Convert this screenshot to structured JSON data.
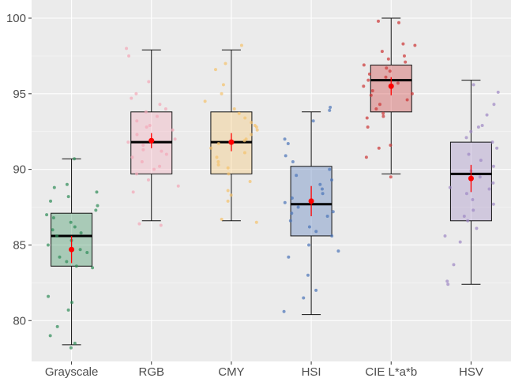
{
  "chart_data": {
    "type": "boxplot",
    "title": "",
    "xlabel": "",
    "ylabel": "",
    "ylim": [
      77.3,
      101.2
    ],
    "yticks": [
      80,
      85,
      90,
      95,
      100
    ],
    "grid": true,
    "categories": [
      "Grayscale",
      "RGB",
      "CMY",
      "HSI",
      "CIE L*a*b",
      "HSV"
    ],
    "boxes": [
      {
        "name": "Grayscale",
        "color": "#2e8b57",
        "whisker_low": 78.4,
        "q1": 83.6,
        "median": 85.6,
        "q3": 87.1,
        "whisker_high": 90.7,
        "mean": 84.7,
        "mean_err": 0.9,
        "points": [
          78.2,
          78.5,
          79.0,
          79.6,
          80.7,
          81.2,
          81.6,
          83.5,
          83.6,
          83.9,
          84.2,
          84.5,
          84.7,
          85.0,
          85.3,
          85.6,
          85.8,
          86.0,
          86.2,
          86.5,
          86.8,
          87.0,
          87.3,
          87.6,
          87.9,
          88.2,
          88.5,
          88.8,
          89.0,
          90.7
        ]
      },
      {
        "name": "RGB",
        "color": "#f4a6b6",
        "whisker_low": 86.6,
        "q1": 89.7,
        "median": 91.8,
        "q3": 93.8,
        "whisker_high": 97.9,
        "mean": 91.9,
        "mean_err": 0.5,
        "points": [
          86.3,
          86.4,
          88.5,
          88.9,
          89.3,
          89.7,
          90.0,
          90.5,
          90.8,
          91.0,
          91.3,
          91.6,
          91.8,
          92.0,
          92.3,
          92.6,
          92.9,
          93.2,
          93.5,
          93.8,
          94.0,
          94.3,
          94.7,
          95.0,
          95.8,
          97.5,
          98.0,
          92.8,
          91.2,
          90.2
        ]
      },
      {
        "name": "CMY",
        "color": "#f5c26b",
        "whisker_low": 86.6,
        "q1": 89.7,
        "median": 91.8,
        "q3": 93.8,
        "whisker_high": 97.9,
        "mean": 91.8,
        "mean_err": 0.6,
        "points": [
          86.5,
          86.7,
          87.9,
          88.3,
          88.6,
          89.2,
          89.7,
          90.1,
          90.5,
          90.8,
          91.1,
          91.4,
          91.7,
          92.0,
          92.3,
          92.6,
          92.9,
          93.1,
          93.4,
          93.7,
          94.0,
          94.5,
          95.0,
          95.6,
          96.6,
          97.0,
          98.2,
          91.9,
          90.3,
          92.8
        ]
      },
      {
        "name": "HSI",
        "color": "#4a74b8",
        "whisker_low": 80.4,
        "q1": 85.6,
        "median": 87.7,
        "q3": 90.2,
        "whisker_high": 93.8,
        "mean": 87.9,
        "mean_err": 1.0,
        "points": [
          80.6,
          81.5,
          82.0,
          83.0,
          84.2,
          84.6,
          85.0,
          85.6,
          85.9,
          86.2,
          86.6,
          86.9,
          87.2,
          87.5,
          87.8,
          88.1,
          88.4,
          88.7,
          89.0,
          89.3,
          89.6,
          90.0,
          90.5,
          90.9,
          91.7,
          92.0,
          93.2,
          93.9,
          94.1,
          87.1
        ]
      },
      {
        "name": "CIE L*a*b",
        "color": "#cc3333",
        "whisker_low": 89.7,
        "q1": 93.8,
        "median": 95.9,
        "q3": 96.9,
        "whisker_high": 100.0,
        "mean": 95.5,
        "mean_err": 0.6,
        "points": [
          89.5,
          90.8,
          91.4,
          91.6,
          93.4,
          93.7,
          94.0,
          94.3,
          94.6,
          94.9,
          95.2,
          95.5,
          95.7,
          95.9,
          96.1,
          96.3,
          96.5,
          96.7,
          96.9,
          97.1,
          97.3,
          97.5,
          97.8,
          98.2,
          98.3,
          99.7,
          99.8,
          93.5,
          92.8,
          95.0
        ]
      },
      {
        "name": "HSV",
        "color": "#9e88c4",
        "whisker_low": 82.4,
        "q1": 86.6,
        "median": 89.7,
        "q3": 91.8,
        "whisker_high": 95.9,
        "mean": 89.4,
        "mean_err": 0.9,
        "points": [
          82.4,
          82.6,
          83.7,
          85.2,
          85.6,
          86.1,
          86.6,
          86.9,
          87.3,
          87.7,
          88.0,
          88.4,
          88.8,
          89.1,
          89.5,
          89.9,
          90.2,
          90.6,
          91.0,
          91.4,
          91.8,
          92.1,
          92.5,
          92.9,
          93.6,
          94.3,
          95.6,
          95.1,
          92.8,
          88.7
        ]
      }
    ]
  }
}
